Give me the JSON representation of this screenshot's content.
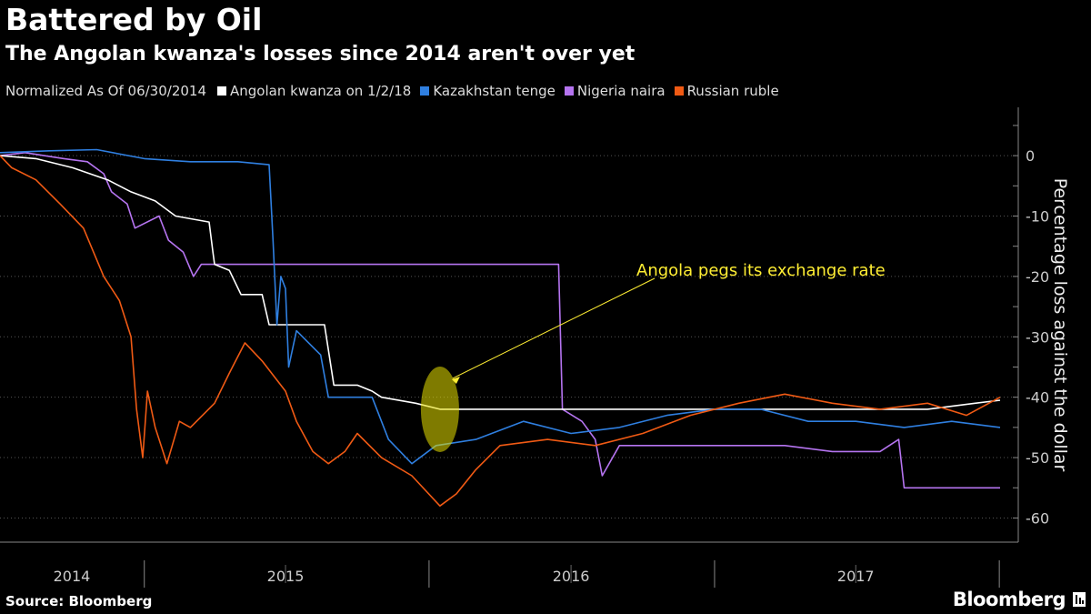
{
  "header": {
    "title": "Battered by Oil",
    "subtitle": "The Angolan kwanza's losses since 2014 aren't over yet"
  },
  "legend": {
    "note": "Normalized As Of 06/30/2014",
    "items": [
      {
        "label": "Angolan kwanza on 1/2/18",
        "color": "#ffffff"
      },
      {
        "label": "Kazakhstan tenge",
        "color": "#2f7fe0"
      },
      {
        "label": "Nigeria naira",
        "color": "#b574f0"
      },
      {
        "label": "Russian ruble",
        "color": "#f05a14"
      }
    ]
  },
  "footer": {
    "source": "Source: Bloomberg",
    "brand": "Bloomberg"
  },
  "chart_data": {
    "type": "line",
    "ylabel": "Percentage loss against the dollar",
    "ylim": [
      -64,
      8
    ],
    "yticks": [
      0,
      -10,
      -20,
      -30,
      -40,
      -50,
      -60
    ],
    "xlim": [
      "2014-06-30",
      "2018-01-02"
    ],
    "x_ticks": [
      "2014",
      "2015",
      "2016",
      "2017"
    ],
    "grid": true,
    "axis_side": "right",
    "annotation": {
      "text": "Angola pegs its exchange rate",
      "target": {
        "x": "2016-01-15",
        "y": -42
      }
    },
    "series": [
      {
        "name": "Angolan kwanza on 1/2/18",
        "color": "#ffffff",
        "points": [
          [
            "2014-06-30",
            0
          ],
          [
            "2014-08-15",
            -0.5
          ],
          [
            "2014-10-01",
            -2
          ],
          [
            "2014-11-15",
            -4
          ],
          [
            "2014-12-15",
            -6
          ],
          [
            "2015-01-15",
            -7.5
          ],
          [
            "2015-02-10",
            -10
          ],
          [
            "2015-03-25",
            -11
          ],
          [
            "2015-03-30",
            -16
          ],
          [
            "2015-04-01",
            -18
          ],
          [
            "2015-04-20",
            -19
          ],
          [
            "2015-05-05",
            -23
          ],
          [
            "2015-06-01",
            -23
          ],
          [
            "2015-06-10",
            -28
          ],
          [
            "2015-07-15",
            -28
          ],
          [
            "2015-08-20",
            -28
          ],
          [
            "2015-09-01",
            -38
          ],
          [
            "2015-10-01",
            -38
          ],
          [
            "2015-10-20",
            -39
          ],
          [
            "2015-11-01",
            -40
          ],
          [
            "2015-12-15",
            -41
          ],
          [
            "2016-01-15",
            -42
          ],
          [
            "2016-06-01",
            -42
          ],
          [
            "2016-12-01",
            -42
          ],
          [
            "2017-06-01",
            -42
          ],
          [
            "2017-10-01",
            -42
          ],
          [
            "2017-12-01",
            -41
          ],
          [
            "2018-01-02",
            -40.5
          ]
        ]
      },
      {
        "name": "Kazakhstan tenge",
        "color": "#2f7fe0",
        "points": [
          [
            "2014-06-30",
            0.5
          ],
          [
            "2014-09-01",
            0.8
          ],
          [
            "2014-11-01",
            1
          ],
          [
            "2015-01-01",
            -0.5
          ],
          [
            "2015-03-01",
            -1
          ],
          [
            "2015-05-01",
            -1
          ],
          [
            "2015-06-10",
            -1.5
          ],
          [
            "2015-06-15",
            -14
          ],
          [
            "2015-06-20",
            -28
          ],
          [
            "2015-06-25",
            -20
          ],
          [
            "2015-07-01",
            -22
          ],
          [
            "2015-07-05",
            -35
          ],
          [
            "2015-07-15",
            -29
          ],
          [
            "2015-08-15",
            -33
          ],
          [
            "2015-08-25",
            -40
          ],
          [
            "2015-09-15",
            -40
          ],
          [
            "2015-10-20",
            -40
          ],
          [
            "2015-11-10",
            -47
          ],
          [
            "2015-12-10",
            -51
          ],
          [
            "2016-01-10",
            -48
          ],
          [
            "2016-03-01",
            -47
          ],
          [
            "2016-05-01",
            -44
          ],
          [
            "2016-07-01",
            -46
          ],
          [
            "2016-09-01",
            -45
          ],
          [
            "2016-11-01",
            -43
          ],
          [
            "2017-01-01",
            -42
          ],
          [
            "2017-03-01",
            -42
          ],
          [
            "2017-05-01",
            -44
          ],
          [
            "2017-07-01",
            -44
          ],
          [
            "2017-09-01",
            -45
          ],
          [
            "2017-11-01",
            -44
          ],
          [
            "2018-01-02",
            -45
          ]
        ]
      },
      {
        "name": "Nigeria naira",
        "color": "#b574f0",
        "points": [
          [
            "2014-06-30",
            0
          ],
          [
            "2014-08-01",
            0.5
          ],
          [
            "2014-09-20",
            -0.5
          ],
          [
            "2014-10-20",
            -1
          ],
          [
            "2014-11-10",
            -3
          ],
          [
            "2014-11-20",
            -6
          ],
          [
            "2014-12-10",
            -8
          ],
          [
            "2014-12-20",
            -12
          ],
          [
            "2015-01-20",
            -10
          ],
          [
            "2015-02-01",
            -14
          ],
          [
            "2015-02-20",
            -16
          ],
          [
            "2015-03-05",
            -20
          ],
          [
            "2015-03-15",
            -18
          ],
          [
            "2015-05-01",
            -18
          ],
          [
            "2015-08-01",
            -18
          ],
          [
            "2015-12-01",
            -18
          ],
          [
            "2016-02-01",
            -18
          ],
          [
            "2016-06-15",
            -18
          ],
          [
            "2016-06-20",
            -42
          ],
          [
            "2016-07-15",
            -44
          ],
          [
            "2016-08-01",
            -47
          ],
          [
            "2016-08-10",
            -53
          ],
          [
            "2016-09-01",
            -48
          ],
          [
            "2016-12-01",
            -48
          ],
          [
            "2017-04-01",
            -48
          ],
          [
            "2017-06-01",
            -49
          ],
          [
            "2017-08-01",
            -49
          ],
          [
            "2017-08-25",
            -47
          ],
          [
            "2017-09-01",
            -55
          ],
          [
            "2017-10-01",
            -55
          ],
          [
            "2018-01-02",
            -55
          ]
        ]
      },
      {
        "name": "Russian ruble",
        "color": "#f05a14",
        "points": [
          [
            "2014-06-30",
            0
          ],
          [
            "2014-07-15",
            -2
          ],
          [
            "2014-08-15",
            -4
          ],
          [
            "2014-09-15",
            -8
          ],
          [
            "2014-10-15",
            -12
          ],
          [
            "2014-11-10",
            -20
          ],
          [
            "2014-11-30",
            -24
          ],
          [
            "2014-12-15",
            -30
          ],
          [
            "2014-12-22",
            -42
          ],
          [
            "2014-12-30",
            -50
          ],
          [
            "2015-01-05",
            -39
          ],
          [
            "2015-01-15",
            -45
          ],
          [
            "2015-01-30",
            -51
          ],
          [
            "2015-02-15",
            -44
          ],
          [
            "2015-03-01",
            -45
          ],
          [
            "2015-04-01",
            -41
          ],
          [
            "2015-04-20",
            -36
          ],
          [
            "2015-05-10",
            -31
          ],
          [
            "2015-06-01",
            -34
          ],
          [
            "2015-07-01",
            -39
          ],
          [
            "2015-07-15",
            -44
          ],
          [
            "2015-08-05",
            -49
          ],
          [
            "2015-08-25",
            -51
          ],
          [
            "2015-09-15",
            -49
          ],
          [
            "2015-10-01",
            -46
          ],
          [
            "2015-11-01",
            -50
          ],
          [
            "2015-12-10",
            -53
          ],
          [
            "2016-01-15",
            -58
          ],
          [
            "2016-02-05",
            -56
          ],
          [
            "2016-03-01",
            -52
          ],
          [
            "2016-04-01",
            -48
          ],
          [
            "2016-06-01",
            -47
          ],
          [
            "2016-08-01",
            -48
          ],
          [
            "2016-10-01",
            -46
          ],
          [
            "2016-12-01",
            -43
          ],
          [
            "2017-02-01",
            -41
          ],
          [
            "2017-04-01",
            -39.5
          ],
          [
            "2017-06-01",
            -41
          ],
          [
            "2017-08-01",
            -42
          ],
          [
            "2017-10-01",
            -41
          ],
          [
            "2017-11-20",
            -43
          ],
          [
            "2018-01-02",
            -40
          ]
        ]
      }
    ]
  }
}
